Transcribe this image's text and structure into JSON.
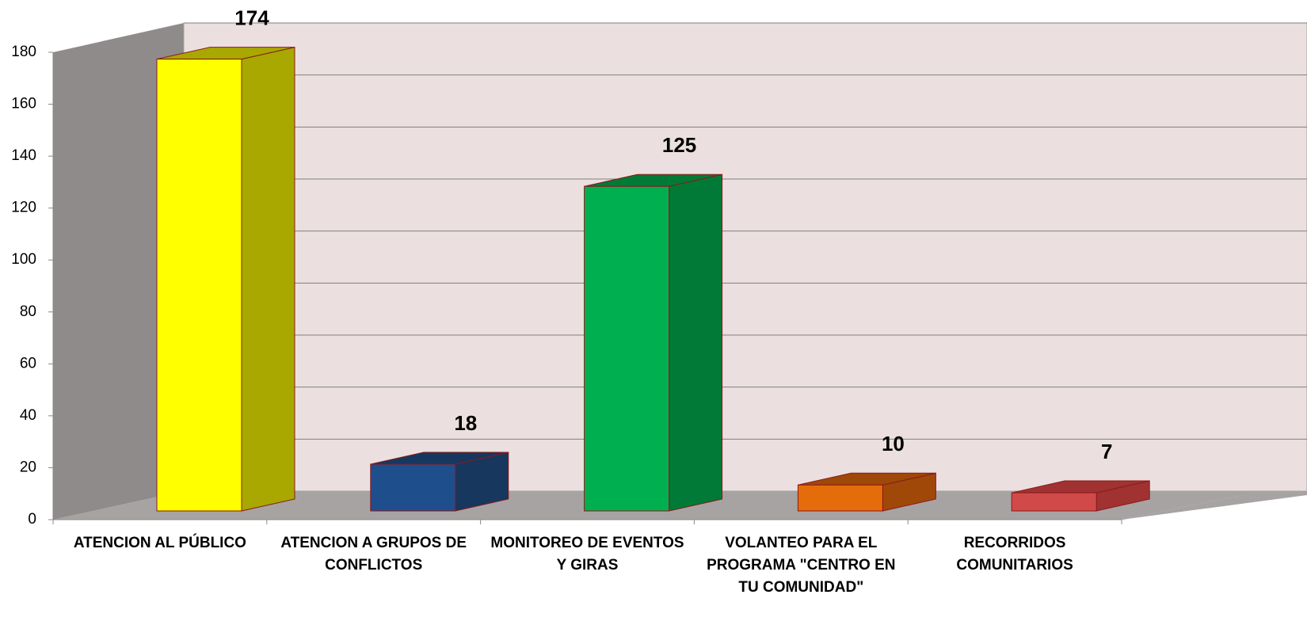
{
  "chart_data": {
    "type": "bar3d",
    "categories": [
      "ATENCION AL PÚBLICO",
      "ATENCION A GRUPOS DE CONFLICTOS",
      "MONITOREO DE EVENTOS Y GIRAS",
      "VOLANTEO PARA EL PROGRAMA \"CENTRO EN TU COMUNIDAD\"",
      "RECORRIDOS COMUNITARIOS"
    ],
    "values": [
      174,
      18,
      125,
      10,
      7
    ],
    "colors": [
      "#ffff00",
      "#1f4e8c",
      "#00b050",
      "#e46c0a",
      "#d04a4a"
    ],
    "side_colors": [
      "#a8a800",
      "#17375e",
      "#007a36",
      "#a04808",
      "#a03232"
    ],
    "ylim": [
      0,
      180
    ],
    "yticks": [
      0,
      20,
      40,
      60,
      80,
      100,
      120,
      140,
      160,
      180
    ],
    "grid": true
  }
}
